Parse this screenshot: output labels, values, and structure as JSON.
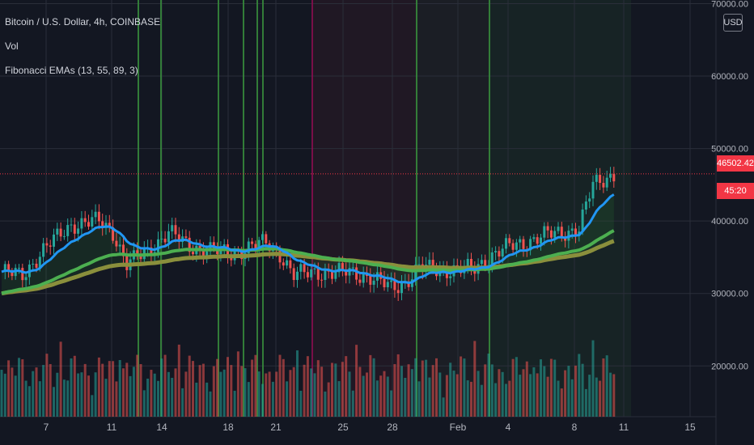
{
  "legend": {
    "symbol": "Bitcoin / U.S. Dollar, 4h, COINBASE",
    "volume": "Vol",
    "indicator": "Fibonacci EMAs (13, 55, 89, 3)"
  },
  "currency_button": "USD",
  "last_price_label": "46502.42",
  "countdown_label": "45:20",
  "colors": {
    "background": "#131722",
    "grid": "#2a2e39",
    "up": "#26a69a",
    "down": "#ef5350",
    "ema13": "#2196f3",
    "ema55": "#4caf50",
    "ema89": "#8a8f3c",
    "signal_line_green": "#388e3c",
    "signal_line_red": "#880e4f",
    "last_price": "#f23645"
  },
  "chart_data": {
    "type": "candlestick",
    "interval": "4h",
    "y_axis": {
      "ticks": [
        20000,
        30000,
        40000,
        50000,
        60000,
        70000
      ],
      "tick_labels": [
        "20000.00",
        "30000.00",
        "40000.00",
        "50000.00",
        "60000.00",
        "70000.00"
      ],
      "range": [
        13000,
        70500
      ]
    },
    "x_axis": {
      "tick_labels": [
        "7",
        "11",
        "14",
        "18",
        "21",
        "25",
        "28",
        "Feb",
        "4",
        "8",
        "11",
        "15"
      ]
    },
    "last_price": 46502.42,
    "price_path": [
      [
        0,
        33000
      ],
      [
        6,
        32500
      ],
      [
        12,
        36000
      ],
      [
        20,
        39500
      ],
      [
        28,
        40000
      ],
      [
        32,
        38500
      ],
      [
        36,
        34000
      ],
      [
        42,
        35800
      ],
      [
        48,
        38500
      ],
      [
        54,
        36500
      ],
      [
        60,
        36000
      ],
      [
        66,
        35500
      ],
      [
        72,
        36500
      ],
      [
        76,
        37000
      ],
      [
        80,
        35500
      ],
      [
        84,
        32500
      ],
      [
        90,
        33000
      ],
      [
        96,
        32800
      ],
      [
        100,
        33000
      ],
      [
        106,
        32200
      ],
      [
        112,
        30800
      ],
      [
        116,
        31500
      ],
      [
        120,
        33500
      ],
      [
        130,
        33200
      ],
      [
        136,
        33500
      ],
      [
        140,
        35000
      ],
      [
        146,
        36500
      ],
      [
        150,
        37000
      ],
      [
        156,
        38000
      ],
      [
        162,
        38500
      ],
      [
        166,
        39000
      ],
      [
        170,
        45000
      ],
      [
        176,
        46500
      ]
    ],
    "signal_lines": [
      {
        "date": "Jan 12",
        "color": "green"
      },
      {
        "date": "Jan 14",
        "color": "green"
      },
      {
        "date": "Jan 17",
        "color": "green"
      },
      {
        "date": "Jan 19",
        "color": "green"
      },
      {
        "date": "Jan 20",
        "color": "green"
      },
      {
        "date": "Jan 20",
        "color": "green"
      },
      {
        "date": "Jan 23",
        "color": "red"
      },
      {
        "date": "Jan 29",
        "color": "green"
      },
      {
        "date": "Feb 3",
        "color": "green"
      }
    ],
    "ema_periods": [
      13,
      55,
      89
    ]
  }
}
